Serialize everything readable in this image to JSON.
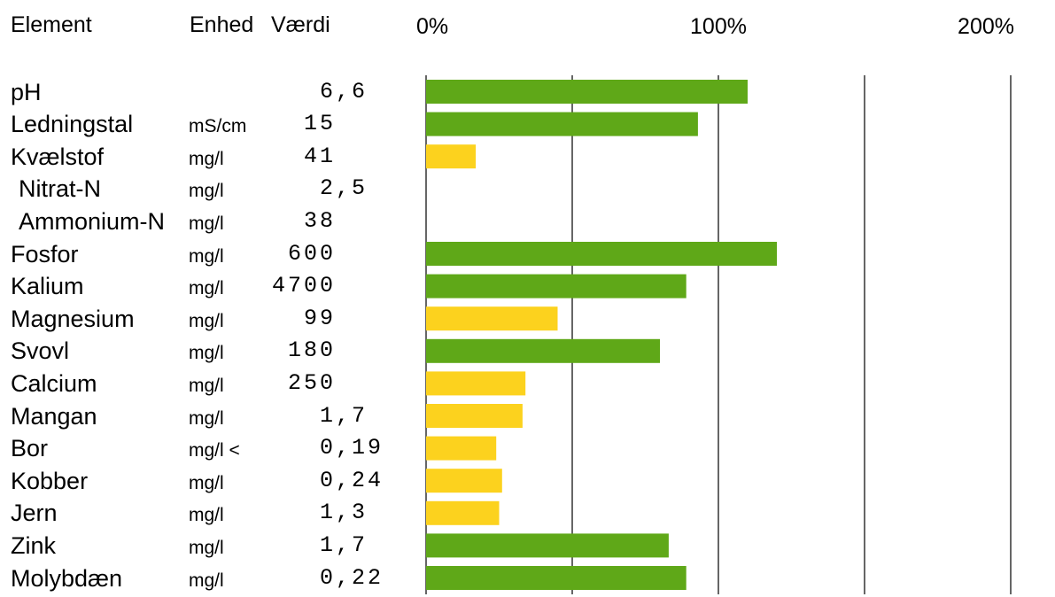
{
  "header": {
    "element": "Element",
    "unit": "Enhed",
    "value": "Værdi"
  },
  "colors": {
    "ok": "#5fa818",
    "low": "#fcd21e",
    "grid": "#000000"
  },
  "chart_data": {
    "type": "bar",
    "orientation": "horizontal",
    "xlim": [
      0,
      200
    ],
    "grid": true,
    "axis_ticks": [
      {
        "value": 0,
        "label": "0%"
      },
      {
        "value": 100,
        "label": "100%"
      },
      {
        "value": 200,
        "label": "200%"
      }
    ],
    "gridlines": [
      0,
      50,
      100,
      150,
      200
    ],
    "rows": [
      {
        "element": "pH",
        "unit": "",
        "value": "6,6",
        "percent": 110,
        "status": "ok",
        "indent": false
      },
      {
        "element": "Ledningstal",
        "unit": "mS/cm",
        "value": "15",
        "percent": 93,
        "status": "ok",
        "indent": false
      },
      {
        "element": "Kvælstof",
        "unit": "mg/l",
        "value": "41",
        "percent": 17,
        "status": "low",
        "indent": false
      },
      {
        "element": "Nitrat-N",
        "unit": "mg/l",
        "value": "2,5",
        "percent": null,
        "status": null,
        "indent": true
      },
      {
        "element": "Ammonium-N",
        "unit": "mg/l",
        "value": "38",
        "percent": null,
        "status": null,
        "indent": true
      },
      {
        "element": "Fosfor",
        "unit": "mg/l",
        "value": "600",
        "percent": 120,
        "status": "ok",
        "indent": false
      },
      {
        "element": "Kalium",
        "unit": "mg/l",
        "value": "4700",
        "percent": 89,
        "status": "ok",
        "indent": false
      },
      {
        "element": "Magnesium",
        "unit": "mg/l",
        "value": "99",
        "percent": 45,
        "status": "low",
        "indent": false
      },
      {
        "element": "Svovl",
        "unit": "mg/l",
        "value": "180",
        "percent": 80,
        "status": "ok",
        "indent": false
      },
      {
        "element": "Calcium",
        "unit": "mg/l",
        "value": "250",
        "percent": 34,
        "status": "low",
        "indent": false
      },
      {
        "element": "Mangan",
        "unit": "mg/l",
        "value": "1,7",
        "percent": 33,
        "status": "low",
        "indent": false
      },
      {
        "element": "Bor",
        "unit": "mg/l <",
        "value": "0,19",
        "percent": 24,
        "status": "low",
        "indent": false
      },
      {
        "element": "Kobber",
        "unit": "mg/l",
        "value": "0,24",
        "percent": 26,
        "status": "low",
        "indent": false
      },
      {
        "element": "Jern",
        "unit": "mg/l",
        "value": "1,3",
        "percent": 25,
        "status": "low",
        "indent": false
      },
      {
        "element": "Zink",
        "unit": "mg/l",
        "value": "1,7",
        "percent": 83,
        "status": "ok",
        "indent": false
      },
      {
        "element": "Molybdæn",
        "unit": "mg/l",
        "value": "0,22",
        "percent": 89,
        "status": "ok",
        "indent": false
      }
    ]
  }
}
